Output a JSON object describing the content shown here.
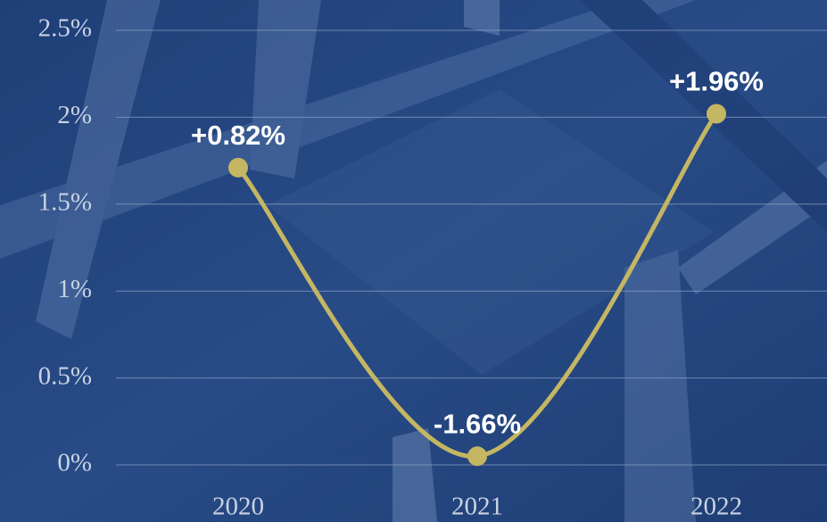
{
  "chart_data": {
    "type": "line",
    "categories": [
      "2020",
      "2021",
      "2022"
    ],
    "series": [
      {
        "color": "#c4b662",
        "values": [
          1.71,
          0.05,
          2.02
        ]
      }
    ],
    "annotations": [
      "+0.82%",
      "-1.66%",
      "+1.96%"
    ],
    "ylim": [
      0,
      2.5
    ],
    "yticks": [
      {
        "value": 0,
        "label": "0%"
      },
      {
        "value": 0.5,
        "label": "0.5%"
      },
      {
        "value": 1,
        "label": "1%"
      },
      {
        "value": 1.5,
        "label": "1.5%"
      },
      {
        "value": 2,
        "label": "2%"
      },
      {
        "value": 2.5,
        "label": "2.5%"
      }
    ],
    "grid": true
  }
}
